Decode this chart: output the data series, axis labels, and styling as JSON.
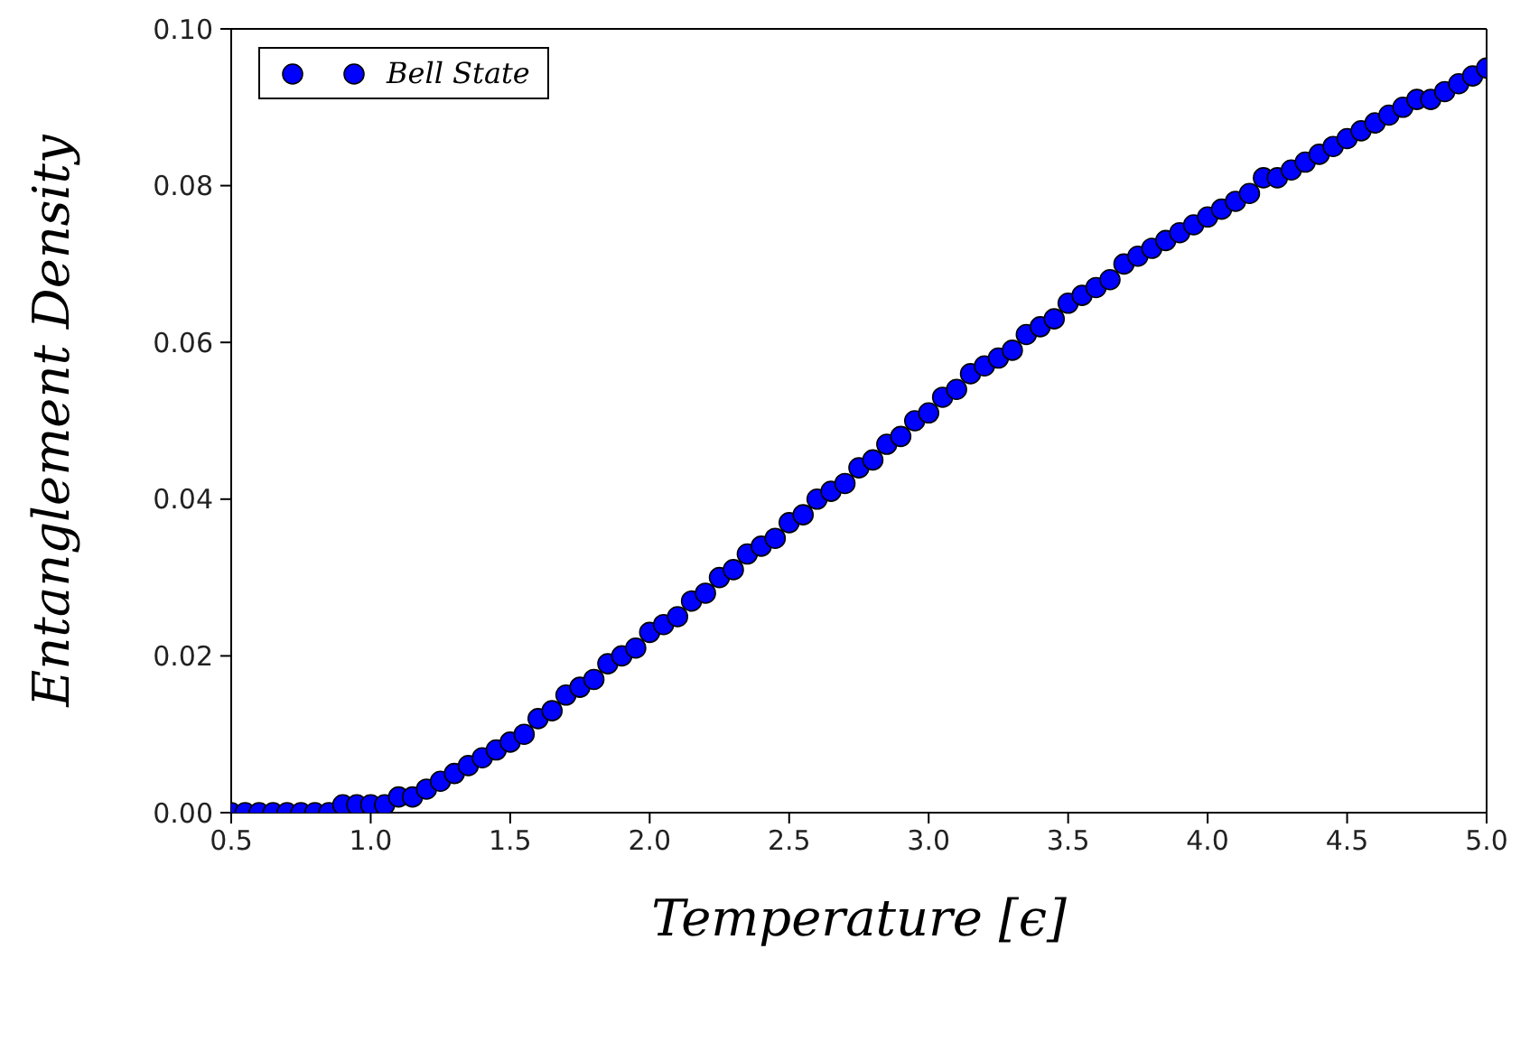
{
  "chart_data": {
    "type": "scatter",
    "xlabel": "Temperature [ϵ]",
    "ylabel": "Entanglement Density",
    "xlim": [
      0.5,
      5.0
    ],
    "ylim": [
      0,
      0.1
    ],
    "xticks": [
      {
        "value": 0.5,
        "label": "0.5"
      },
      {
        "value": 1,
        "label": "1.0"
      },
      {
        "value": 1.5,
        "label": "1.5"
      },
      {
        "value": 2,
        "label": "2.0"
      },
      {
        "value": 2.5,
        "label": "2.5"
      },
      {
        "value": 3,
        "label": "3.0"
      },
      {
        "value": 3.5,
        "label": "3.5"
      },
      {
        "value": 4,
        "label": "4.0"
      },
      {
        "value": 4.5,
        "label": "4.5"
      },
      {
        "value": 5,
        "label": "5.0"
      }
    ],
    "yticks": [
      {
        "value": 0,
        "label": "0.00"
      },
      {
        "value": 0.02,
        "label": "0.02"
      },
      {
        "value": 0.04,
        "label": "0.04"
      },
      {
        "value": 0.06,
        "label": "0.06"
      },
      {
        "value": 0.08,
        "label": "0.08"
      },
      {
        "value": 0.1,
        "label": "0.10"
      }
    ],
    "legend": "top left",
    "marker": "circle",
    "series": [
      {
        "name": "Bell State",
        "color": "#0000ff",
        "x": [
          0.5,
          0.55,
          0.6,
          0.65,
          0.7,
          0.75,
          0.8,
          0.85,
          0.9,
          0.95,
          1.0,
          1.05,
          1.1,
          1.15,
          1.2,
          1.25,
          1.3,
          1.35,
          1.4,
          1.45,
          1.5,
          1.55,
          1.6,
          1.65,
          1.7,
          1.75,
          1.8,
          1.85,
          1.9,
          1.95,
          2.0,
          2.05,
          2.1,
          2.15,
          2.2,
          2.25,
          2.3,
          2.35,
          2.4,
          2.45,
          2.5,
          2.55,
          2.6,
          2.65,
          2.7,
          2.75,
          2.8,
          2.85,
          2.9,
          2.95,
          3.0,
          3.05,
          3.1,
          3.15,
          3.2,
          3.25,
          3.3,
          3.35,
          3.4,
          3.45,
          3.5,
          3.55,
          3.6,
          3.65,
          3.7,
          3.75,
          3.8,
          3.85,
          3.9,
          3.95,
          4.0,
          4.05,
          4.1,
          4.15,
          4.2,
          4.25,
          4.3,
          4.35,
          4.4,
          4.45,
          4.5,
          4.55,
          4.6,
          4.65,
          4.7,
          4.75,
          4.8,
          4.85,
          4.9,
          4.95,
          5.0
        ],
        "values": [
          0,
          0,
          0,
          0,
          0,
          0,
          0,
          0,
          0.001,
          0.001,
          0.001,
          0.001,
          0.002,
          0.002,
          0.003,
          0.004,
          0.005,
          0.006,
          0.007,
          0.008,
          0.009,
          0.01,
          0.012,
          0.013,
          0.015,
          0.016,
          0.017,
          0.019,
          0.02,
          0.021,
          0.023,
          0.024,
          0.025,
          0.027,
          0.028,
          0.03,
          0.031,
          0.033,
          0.034,
          0.035,
          0.037,
          0.038,
          0.04,
          0.041,
          0.042,
          0.044,
          0.045,
          0.047,
          0.048,
          0.05,
          0.051,
          0.053,
          0.054,
          0.056,
          0.057,
          0.058,
          0.059,
          0.061,
          0.062,
          0.063,
          0.065,
          0.066,
          0.067,
          0.068,
          0.07,
          0.071,
          0.072,
          0.073,
          0.074,
          0.075,
          0.076,
          0.077,
          0.078,
          0.079,
          0.081,
          0.081,
          0.082,
          0.083,
          0.084,
          0.085,
          0.086,
          0.087,
          0.088,
          0.089,
          0.09,
          0.091,
          0.091,
          0.092,
          0.093,
          0.094,
          0.095
        ]
      }
    ]
  }
}
